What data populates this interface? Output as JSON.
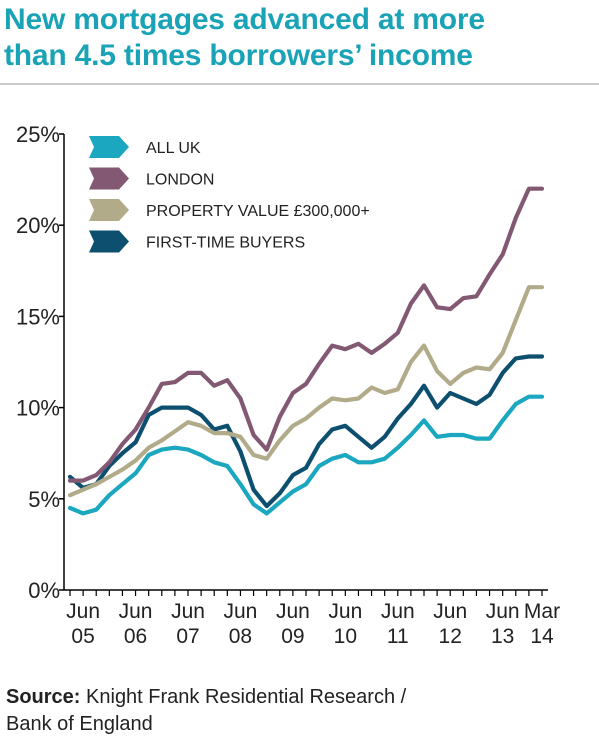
{
  "title_line1": "New mortgages advanced at more",
  "title_line2": "than 4.5 times borrowers’ income",
  "source_label": "Source:",
  "source_line1": "Knight Frank Residential Research /",
  "source_line2": "Bank of England",
  "colors": {
    "all_uk": "#1aa7bf",
    "london": "#825873",
    "property": "#b1ab8a",
    "ftb": "#0d4f6e",
    "title": "#1aa3b6",
    "axis": "#000000"
  },
  "chart_data": {
    "type": "line",
    "x_start": "2005-03",
    "x_end": "2014-03",
    "x": [
      "2005-03",
      "2005-06",
      "2005-09",
      "2005-12",
      "2006-03",
      "2006-06",
      "2006-09",
      "2006-12",
      "2007-03",
      "2007-06",
      "2007-09",
      "2007-12",
      "2008-03",
      "2008-06",
      "2008-09",
      "2008-12",
      "2009-03",
      "2009-06",
      "2009-09",
      "2009-12",
      "2010-03",
      "2010-06",
      "2010-09",
      "2010-12",
      "2011-03",
      "2011-06",
      "2011-09",
      "2011-12",
      "2012-03",
      "2012-06",
      "2012-09",
      "2012-12",
      "2013-03",
      "2013-06",
      "2013-09",
      "2013-12",
      "2014-03"
    ],
    "ylim": [
      0,
      25
    ],
    "yticks": [
      "0%",
      "5%",
      "10%",
      "15%",
      "20%",
      "25%"
    ],
    "xticks": [
      {
        "top": "Jun",
        "bottom": "05",
        "x": "2005-06"
      },
      {
        "top": "Jun",
        "bottom": "06",
        "x": "2006-06"
      },
      {
        "top": "Jun",
        "bottom": "07",
        "x": "2007-06"
      },
      {
        "top": "Jun",
        "bottom": "08",
        "x": "2008-06"
      },
      {
        "top": "Jun",
        "bottom": "09",
        "x": "2009-06"
      },
      {
        "top": "Jun",
        "bottom": "10",
        "x": "2010-06"
      },
      {
        "top": "Jun",
        "bottom": "11",
        "x": "2011-06"
      },
      {
        "top": "Jun",
        "bottom": "12",
        "x": "2012-06"
      },
      {
        "top": "Jun",
        "bottom": "13",
        "x": "2013-06"
      },
      {
        "top": "Mar",
        "bottom": "14",
        "x": "2014-03"
      }
    ],
    "legend_position": "top-left",
    "grid": false,
    "series": [
      {
        "key": "all_uk",
        "name": "ALL UK",
        "values": [
          4.5,
          4.2,
          4.4,
          5.2,
          5.8,
          6.4,
          7.4,
          7.7,
          7.8,
          7.7,
          7.4,
          7.0,
          6.8,
          5.8,
          4.7,
          4.2,
          4.8,
          5.4,
          5.8,
          6.8,
          7.2,
          7.4,
          7.0,
          7.0,
          7.2,
          7.8,
          8.5,
          9.3,
          8.4,
          8.5,
          8.5,
          8.3,
          8.3,
          9.3,
          10.2,
          10.6,
          10.6
        ]
      },
      {
        "key": "london",
        "name": "LONDON",
        "values": [
          6.0,
          6.0,
          6.3,
          7.0,
          8.0,
          8.8,
          10.0,
          11.3,
          11.4,
          11.9,
          11.9,
          11.2,
          11.5,
          10.5,
          8.5,
          7.7,
          9.5,
          10.8,
          11.3,
          12.4,
          13.4,
          13.2,
          13.5,
          13.0,
          13.5,
          14.1,
          15.7,
          16.7,
          15.5,
          15.4,
          16.0,
          16.1,
          17.3,
          18.4,
          20.4,
          22.0,
          22.0
        ]
      },
      {
        "key": "property",
        "name": "PROPERTY VALUE £300,000+",
        "values": [
          5.2,
          5.5,
          5.8,
          6.2,
          6.6,
          7.1,
          7.8,
          8.2,
          8.7,
          9.2,
          9.0,
          8.6,
          8.6,
          8.4,
          7.4,
          7.2,
          8.2,
          9.0,
          9.4,
          10.0,
          10.5,
          10.4,
          10.5,
          11.1,
          10.8,
          11.0,
          12.5,
          13.4,
          12.0,
          11.3,
          11.9,
          12.2,
          12.1,
          13.0,
          14.8,
          16.6,
          16.6
        ]
      },
      {
        "key": "ftb",
        "name": "FIRST-TIME BUYERS",
        "values": [
          6.2,
          5.6,
          5.8,
          6.8,
          7.5,
          8.1,
          9.6,
          10.0,
          10.0,
          10.0,
          9.6,
          8.8,
          9.0,
          7.6,
          5.5,
          4.6,
          5.3,
          6.3,
          6.7,
          8.0,
          8.8,
          9.0,
          8.4,
          7.8,
          8.4,
          9.4,
          10.2,
          11.2,
          10.0,
          10.8,
          10.5,
          10.2,
          10.7,
          11.9,
          12.7,
          12.8,
          12.8
        ]
      }
    ]
  }
}
